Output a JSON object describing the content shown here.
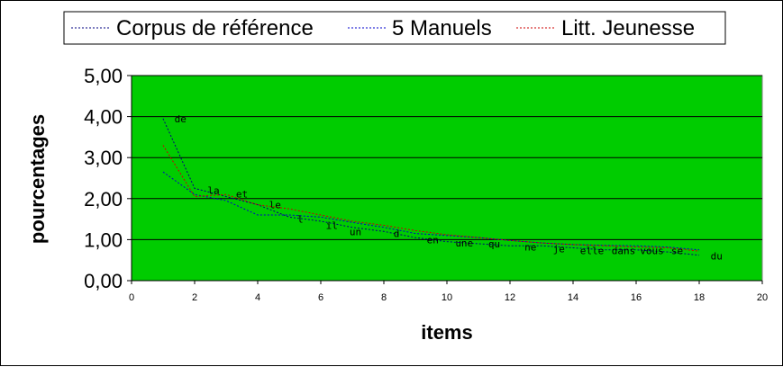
{
  "chart_data": {
    "type": "line",
    "xlabel": "items",
    "ylabel": "pourcentages",
    "xlim": [
      0,
      20
    ],
    "ylim": [
      0,
      5
    ],
    "xticks": [
      0,
      2,
      4,
      6,
      8,
      10,
      12,
      14,
      16,
      18,
      20
    ],
    "xtick_labels": [
      "0",
      "2",
      "4",
      "6",
      "8",
      "10",
      "12",
      "14",
      "16",
      "18",
      "20"
    ],
    "yticks": [
      0,
      1,
      2,
      3,
      4,
      5
    ],
    "ytick_labels": [
      "0,00",
      "1,00",
      "2,00",
      "3,00",
      "4,00",
      "5,00"
    ],
    "grid": "horizontal",
    "plot_background": "#00cc00",
    "legend_position": "top",
    "series": [
      {
        "name": "Corpus de référence",
        "color": "#000080",
        "x": [
          1,
          2,
          3,
          4,
          5,
          6,
          7,
          8,
          9,
          10,
          11,
          12,
          13,
          14,
          15,
          16,
          17,
          18
        ],
        "values": [
          3.95,
          2.25,
          2.05,
          1.85,
          1.55,
          1.45,
          1.3,
          1.2,
          1.05,
          0.95,
          0.9,
          0.85,
          0.85,
          0.8,
          0.75,
          0.75,
          0.7,
          0.62
        ]
      },
      {
        "name": "5 Manuels",
        "color": "#0000cc",
        "x": [
          1,
          2,
          3,
          4,
          5,
          6,
          7,
          8,
          9,
          10,
          11,
          12,
          13,
          14,
          15,
          16,
          17,
          18
        ],
        "values": [
          2.65,
          2.1,
          1.95,
          1.6,
          1.6,
          1.55,
          1.42,
          1.3,
          1.15,
          1.1,
          1.05,
          0.98,
          0.92,
          0.88,
          0.86,
          0.85,
          0.82,
          0.75
        ]
      },
      {
        "name": "Litt. Jeunesse",
        "color": "#cc0000",
        "x": [
          1,
          2,
          3,
          4,
          5,
          6,
          7,
          8,
          9,
          10,
          11,
          12,
          13,
          14,
          15,
          16,
          17,
          18
        ],
        "values": [
          3.3,
          2.05,
          2.1,
          1.85,
          1.75,
          1.6,
          1.45,
          1.35,
          1.22,
          1.12,
          1.05,
          0.98,
          0.92,
          0.88,
          0.85,
          0.82,
          0.8,
          0.72
        ]
      }
    ],
    "point_labels": [
      {
        "text": "de",
        "x": 1.55,
        "y": 3.95
      },
      {
        "text": "la",
        "x": 2.6,
        "y": 2.2
      },
      {
        "text": "et",
        "x": 3.5,
        "y": 2.12
      },
      {
        "text": "le",
        "x": 4.55,
        "y": 1.85
      },
      {
        "text": "l",
        "x": 5.35,
        "y": 1.5
      },
      {
        "text": "il",
        "x": 6.35,
        "y": 1.35
      },
      {
        "text": "un",
        "x": 7.1,
        "y": 1.2
      },
      {
        "text": "d",
        "x": 8.4,
        "y": 1.15
      },
      {
        "text": "en",
        "x": 9.55,
        "y": 1.0
      },
      {
        "text": "une",
        "x": 10.55,
        "y": 0.92
      },
      {
        "text": "qu",
        "x": 11.5,
        "y": 0.9
      },
      {
        "text": "ne",
        "x": 12.65,
        "y": 0.82
      },
      {
        "text": "je",
        "x": 13.55,
        "y": 0.78
      },
      {
        "text": "elle",
        "x": 14.6,
        "y": 0.73
      },
      {
        "text": "dans",
        "x": 15.6,
        "y": 0.73
      },
      {
        "text": "vous",
        "x": 16.5,
        "y": 0.73
      },
      {
        "text": "se",
        "x": 17.3,
        "y": 0.73
      },
      {
        "text": "du",
        "x": 18.55,
        "y": 0.6
      }
    ]
  }
}
